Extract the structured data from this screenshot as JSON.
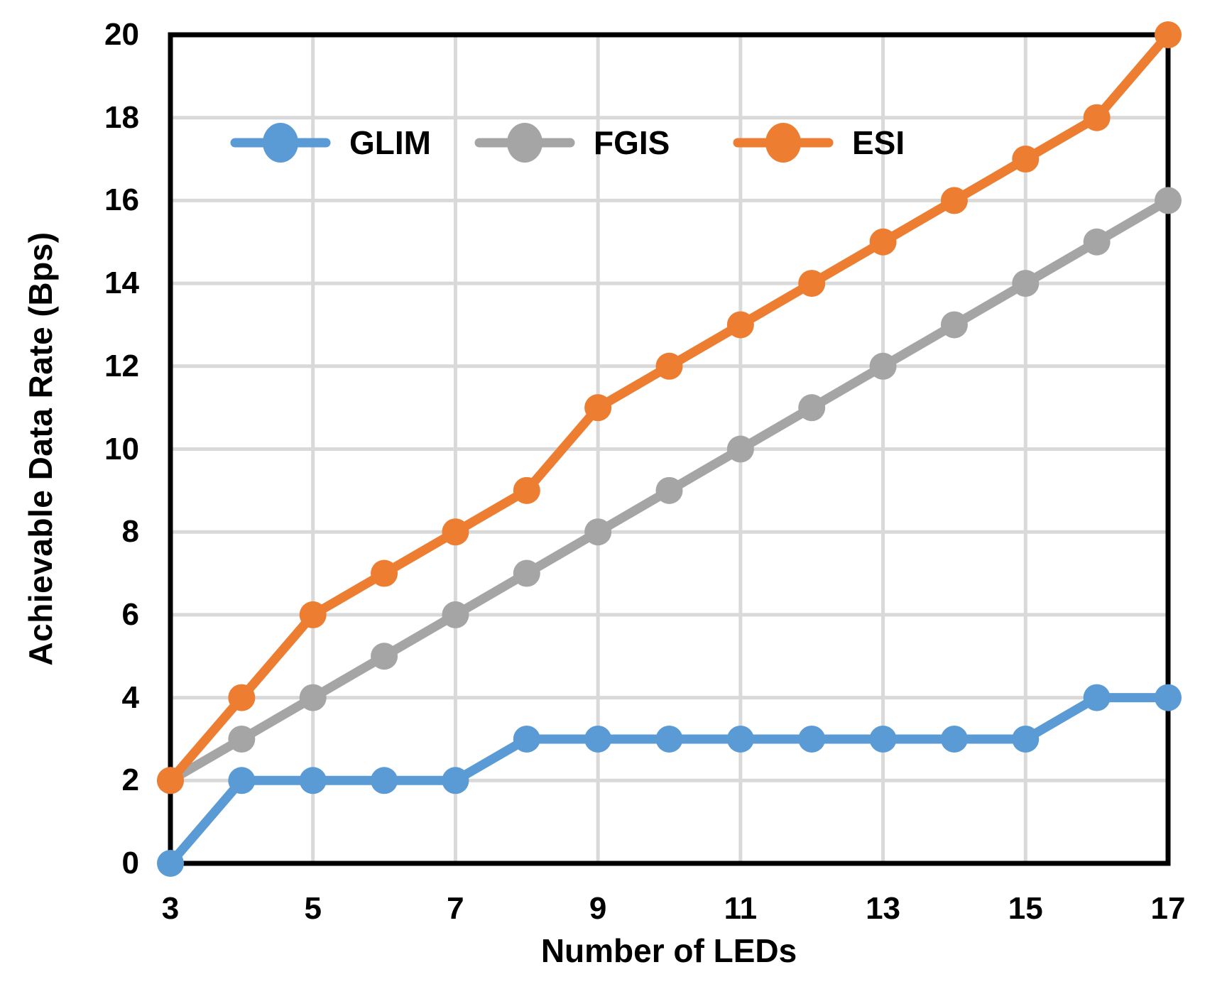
{
  "chart_data": {
    "type": "line",
    "title": "",
    "xlabel": "Number of LEDs",
    "ylabel": "Achievable Data Rate (Bps)",
    "x": [
      3,
      4,
      5,
      6,
      7,
      8,
      9,
      10,
      11,
      12,
      13,
      14,
      15,
      16,
      17
    ],
    "xlim": [
      3,
      17
    ],
    "ylim": [
      0,
      20
    ],
    "x_tick_labels": [
      3,
      5,
      7,
      9,
      11,
      13,
      15,
      17
    ],
    "y_tick_labels": [
      0,
      2,
      4,
      6,
      8,
      10,
      12,
      14,
      16,
      18,
      20
    ],
    "grid": true,
    "legend_position": "top-inside-horizontal",
    "series": [
      {
        "name": "GLIM",
        "color": "#5B9BD5",
        "values": [
          0,
          2,
          2,
          2,
          2,
          3,
          3,
          3,
          3,
          3,
          3,
          3,
          3,
          4,
          4
        ]
      },
      {
        "name": "FGIS",
        "color": "#A5A5A5",
        "values": [
          2,
          3,
          4,
          5,
          6,
          7,
          8,
          9,
          10,
          11,
          12,
          13,
          14,
          15,
          16
        ]
      },
      {
        "name": "ESI",
        "color": "#ED7D31",
        "values": [
          2,
          4,
          6,
          7,
          8,
          9,
          11,
          12,
          13,
          14,
          15,
          16,
          17,
          18,
          20
        ]
      }
    ],
    "colors": {
      "grid": "#D9D9D9",
      "axis": "#000000",
      "background": "#FFFFFF"
    }
  }
}
